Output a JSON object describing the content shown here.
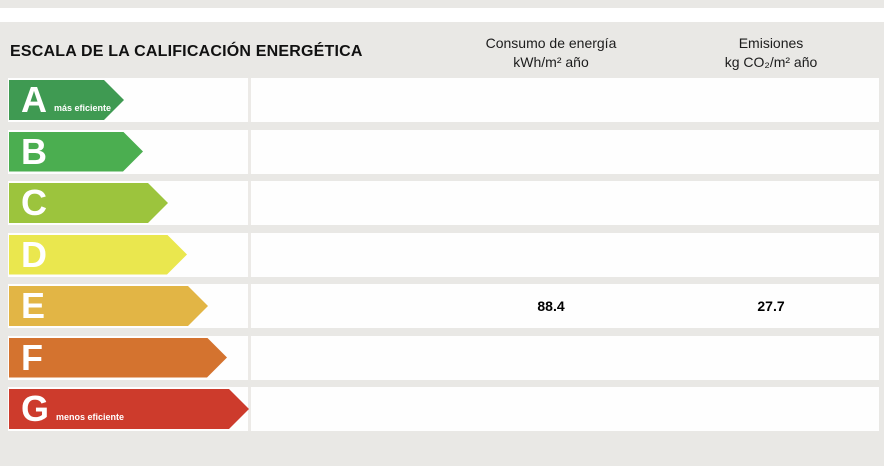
{
  "title": "ESCALA DE LA CALIFICACIÓN ENERGÉTICA",
  "columns": {
    "consumption": {
      "line1": "Consumo de energía",
      "line2": "kWh/m² año"
    },
    "emissions": {
      "line1": "Emisiones",
      "line2": "kg CO₂/m² año"
    }
  },
  "scale": {
    "rows": [
      {
        "letter": "A",
        "note": "más eficiente",
        "color": "#3f9a52",
        "arrow_width": 115,
        "consumption": "",
        "emissions": ""
      },
      {
        "letter": "B",
        "note": "",
        "color": "#4bae50",
        "arrow_width": 134,
        "consumption": "",
        "emissions": ""
      },
      {
        "letter": "C",
        "note": "",
        "color": "#9cc43d",
        "arrow_width": 159,
        "consumption": "",
        "emissions": ""
      },
      {
        "letter": "D",
        "note": "",
        "color": "#eae74e",
        "arrow_width": 178,
        "consumption": "",
        "emissions": ""
      },
      {
        "letter": "E",
        "note": "",
        "color": "#e2b545",
        "arrow_width": 199,
        "consumption": "88.4",
        "emissions": "27.7"
      },
      {
        "letter": "F",
        "note": "",
        "color": "#d4732f",
        "arrow_width": 218,
        "consumption": "",
        "emissions": ""
      },
      {
        "letter": "G",
        "note": "menos eficiente",
        "color": "#cd3b2c",
        "arrow_width": 240,
        "consumption": "",
        "emissions": ""
      }
    ]
  },
  "colors": {
    "panel_background": "#e9e8e5",
    "row_background": "#fefefe",
    "rating_a": "#3f9a52",
    "rating_b": "#4bae50",
    "rating_c": "#9cc43d",
    "rating_d": "#eae74e",
    "rating_e": "#e2b545",
    "rating_f": "#d4732f",
    "rating_g": "#cd3b2c"
  },
  "chart_data": {
    "type": "table",
    "title": "ESCALA DE LA CALIFICACIÓN ENERGÉTICA",
    "categories": [
      "A",
      "B",
      "C",
      "D",
      "E",
      "F",
      "G"
    ],
    "category_notes": {
      "A": "más eficiente",
      "G": "menos eficiente"
    },
    "columns": [
      "Consumo de energía kWh/m² año",
      "Emisiones kg CO₂/m² año"
    ],
    "rated_letter": "E",
    "consumption_kwh_m2_year": 88.4,
    "emissions_kgco2_m2_year": 27.7,
    "arrow_relative_lengths": [
      115,
      134,
      159,
      178,
      199,
      218,
      240
    ],
    "legend_position": "none",
    "grid": false
  }
}
